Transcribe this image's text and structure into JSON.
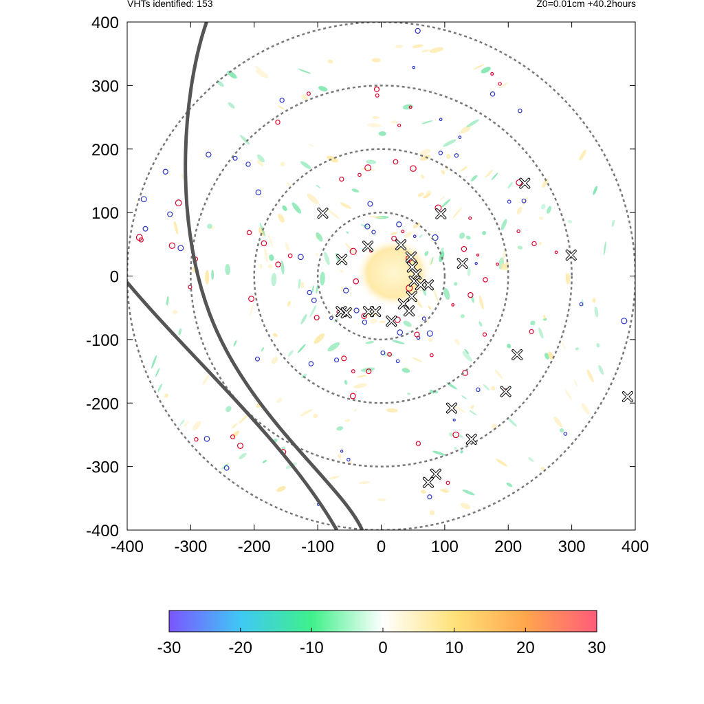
{
  "header": {
    "left_text": "VHTs identified: 153",
    "right_text": "Z0=0.01cm  +40.2hours"
  },
  "chart_data": {
    "type": "scatter",
    "title": "",
    "xlabel": "",
    "ylabel": "",
    "xlim": [
      -400,
      400
    ],
    "ylim": [
      -400,
      400
    ],
    "x_ticks": [
      -400,
      -300,
      -200,
      -100,
      0,
      100,
      200,
      300,
      400
    ],
    "y_ticks": [
      400,
      300,
      200,
      100,
      0,
      -100,
      -200,
      -300,
      -400
    ],
    "x_tick_labels": [
      "-400",
      "-300",
      "-200",
      "-100",
      "0",
      "100",
      "200",
      "300",
      "400"
    ],
    "y_tick_labels": [
      "400",
      "300",
      "200",
      "100",
      "0",
      "-100",
      "-200",
      "-300",
      "-400"
    ],
    "range_rings_radius": [
      100,
      200,
      300,
      400
    ],
    "vht_count": 153,
    "vht_markers": [
      {
        "x": -92,
        "y": 99
      },
      {
        "x": 94,
        "y": 98
      },
      {
        "x": 226,
        "y": 146
      },
      {
        "x": -21,
        "y": 47
      },
      {
        "x": 31,
        "y": 49
      },
      {
        "x": 299,
        "y": 33
      },
      {
        "x": 128,
        "y": 20
      },
      {
        "x": -62,
        "y": 26
      },
      {
        "x": 47,
        "y": 30
      },
      {
        "x": 49,
        "y": 14
      },
      {
        "x": 55,
        "y": 3
      },
      {
        "x": 52,
        "y": -8
      },
      {
        "x": 74,
        "y": -14
      },
      {
        "x": 62,
        "y": -14
      },
      {
        "x": 48,
        "y": -32
      },
      {
        "x": 35,
        "y": -44
      },
      {
        "x": 44,
        "y": -55
      },
      {
        "x": -63,
        "y": -56
      },
      {
        "x": -55,
        "y": -58
      },
      {
        "x": -20,
        "y": -56
      },
      {
        "x": -9,
        "y": -56
      },
      {
        "x": 16,
        "y": -71
      },
      {
        "x": 214,
        "y": -124
      },
      {
        "x": 196,
        "y": -182
      },
      {
        "x": 111,
        "y": -208
      },
      {
        "x": 142,
        "y": -257
      },
      {
        "x": 86,
        "y": -312
      },
      {
        "x": 74,
        "y": -325
      },
      {
        "x": 388,
        "y": -190
      }
    ],
    "colorbar": {
      "min": -30,
      "max": 30,
      "ticks": [
        -30,
        -20,
        -10,
        0,
        10,
        20,
        30
      ],
      "tick_labels": [
        "-30",
        "-20",
        "-10",
        "0",
        "10",
        "20",
        "30"
      ],
      "colors": [
        "#7b55ff",
        "#3fc8f5",
        "#3ff08a",
        "#ffffff",
        "#ffe27a",
        "#ffa64d",
        "#ff5c7a"
      ]
    }
  },
  "colors": {
    "ring": "#777777",
    "track": "#555555",
    "contour_red": "#e0002a",
    "contour_blue": "#2a36c8",
    "warm_fill": "#ffe7a0",
    "cool_fill": "#74e3a6"
  }
}
